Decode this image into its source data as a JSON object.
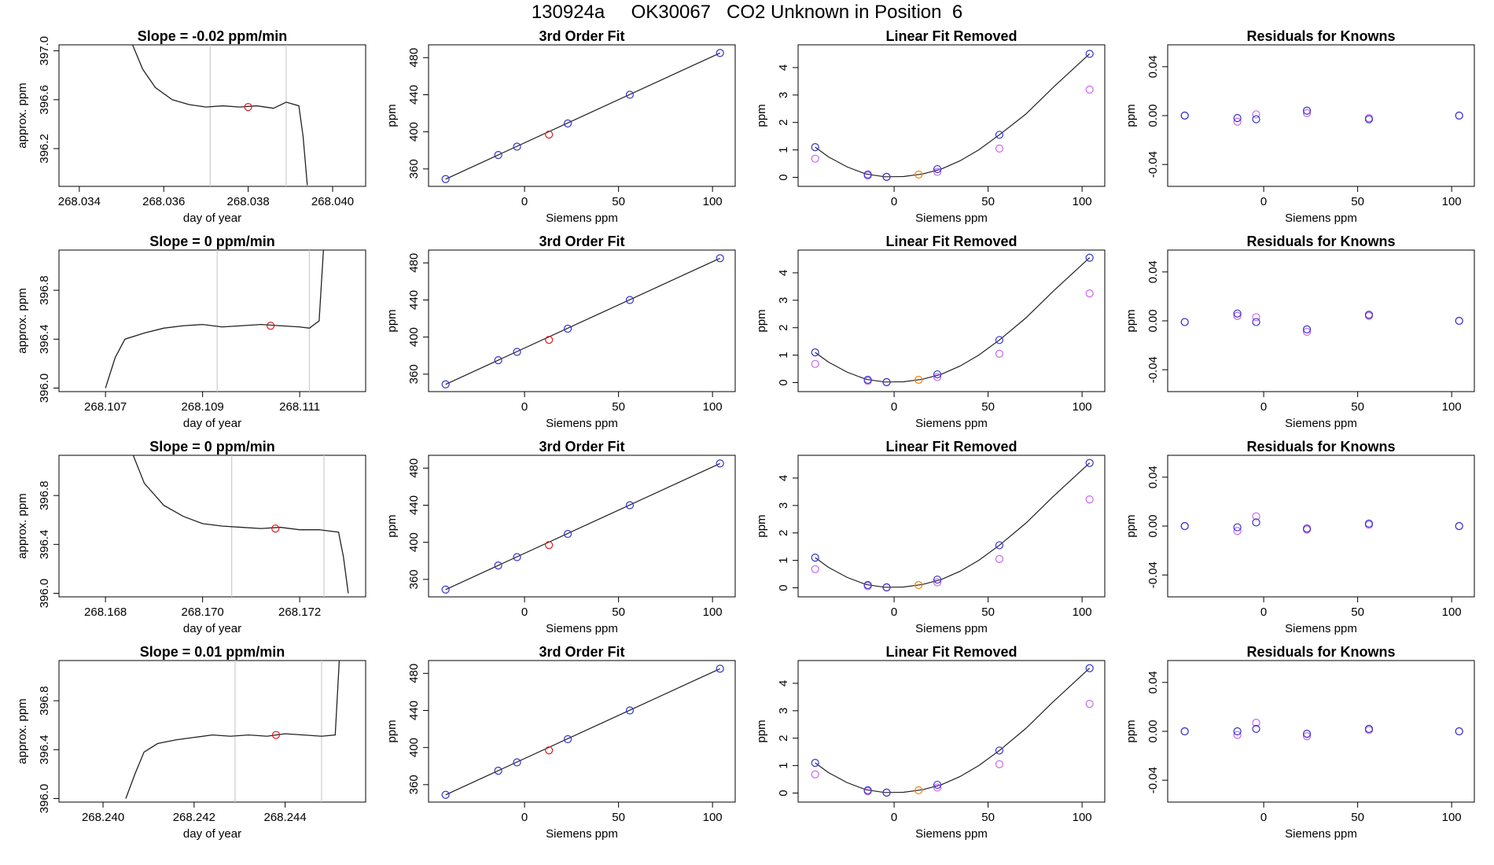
{
  "figure": {
    "title": "130924a     OK30067   CO2 Unknown in Position  6"
  },
  "colors": {
    "line": "#222222",
    "grid": "#cccccc",
    "unknown": "#e41a1c",
    "known": "#3333cc",
    "raw": "#cc66ee",
    "orange": "#ff7f00"
  },
  "labels": {
    "fit_title": "3rd Order Fit",
    "lin_title": "Linear Fit Removed",
    "res_title": "Residuals for Knowns",
    "x_siemens": "Siemens ppm",
    "x_doy": "day of year",
    "y_ppm": "ppm",
    "y_approx": "approx. ppm"
  },
  "chart_data": [
    {
      "type": "line",
      "title": "Slope =  -0.02  ppm/min",
      "xlabel": "day of year",
      "ylabel": "approx. ppm",
      "xlim": [
        268.0337,
        268.0406
      ],
      "ylim": [
        395.92,
        397.02
      ],
      "xticks": [
        "268.034",
        "268.036",
        "268.038",
        "268.040"
      ],
      "yticks": [
        "396.2",
        "396.6",
        "397.0"
      ],
      "window": [
        268.0371,
        268.0389
      ],
      "marker": [
        268.038,
        396.54
      ],
      "series": [
        {
          "x": [
            268.0352,
            268.0355,
            268.0358,
            268.0362,
            268.0366,
            268.037,
            268.0374,
            268.0378,
            268.0382,
            268.0386,
            268.0389,
            268.0392,
            268.0393,
            268.0394
          ],
          "y": [
            397.1,
            396.85,
            396.7,
            396.6,
            396.56,
            396.54,
            396.55,
            396.54,
            396.55,
            396.53,
            396.58,
            396.55,
            396.3,
            395.9
          ]
        }
      ]
    },
    {
      "type": "line",
      "title": "3rd Order Fit",
      "xlabel": "Siemens ppm",
      "ylabel": "ppm",
      "xlim": [
        -47,
        108
      ],
      "ylim": [
        345,
        490
      ],
      "xticks": [
        0,
        50,
        100
      ],
      "yticks": [
        360,
        400,
        440,
        480
      ],
      "fit_line": {
        "x": [
          -42,
          104
        ],
        "y": [
          349,
          485
        ]
      },
      "points_known": {
        "x": [
          -42,
          -14,
          -4,
          23,
          56,
          104
        ],
        "y": [
          349,
          375,
          384,
          409,
          440,
          485
        ]
      },
      "points_unknown": {
        "x": [
          13
        ],
        "y": [
          397
        ]
      }
    },
    {
      "type": "scatter",
      "title": "Linear Fit Removed",
      "xlabel": "Siemens ppm",
      "ylabel": "ppm",
      "xlim": [
        -47,
        108
      ],
      "ylim": [
        -0.2,
        4.7
      ],
      "xticks": [
        0,
        50,
        100
      ],
      "yticks": [
        0,
        1,
        2,
        3,
        4
      ],
      "curve": {
        "x": [
          -42,
          -35,
          -25,
          -15,
          -5,
          5,
          15,
          25,
          35,
          45,
          56,
          70,
          85,
          104
        ],
        "y": [
          1.1,
          0.75,
          0.38,
          0.12,
          0.02,
          0.03,
          0.12,
          0.3,
          0.6,
          1.0,
          1.55,
          2.3,
          3.3,
          4.5
        ]
      },
      "known": {
        "x": [
          -42,
          -14,
          -4,
          23,
          56,
          104
        ],
        "y": [
          1.1,
          0.1,
          0.02,
          0.3,
          1.55,
          4.5
        ]
      },
      "raw": {
        "x": [
          -42,
          -14,
          -4,
          23,
          56,
          104
        ],
        "y": [
          0.68,
          0.06,
          0.01,
          0.2,
          1.05,
          3.2
        ]
      },
      "unknown": {
        "x": [
          13
        ],
        "y": [
          0.1
        ]
      }
    },
    {
      "type": "scatter",
      "title": "Residuals for Knowns",
      "xlabel": "Siemens ppm",
      "ylabel": "ppm",
      "xlim": [
        -47,
        108
      ],
      "ylim": [
        -0.055,
        0.055
      ],
      "xticks": [
        0,
        50,
        100
      ],
      "yticks": [
        "-0.04",
        "0.00",
        "0.04"
      ],
      "known": {
        "x": [
          -42,
          -14,
          -4,
          23,
          56,
          104
        ],
        "y": [
          0.0,
          -0.002,
          -0.003,
          0.004,
          -0.003,
          0.0
        ]
      },
      "raw": {
        "x": [
          -42,
          -14,
          -4,
          23,
          56,
          104
        ],
        "y": [
          0.0,
          -0.005,
          0.001,
          0.002,
          -0.002,
          0.0
        ]
      }
    },
    {
      "type": "line",
      "title": "Slope =  0  ppm/min",
      "xlabel": "day of year",
      "ylabel": "approx. ppm",
      "xlim": [
        268.1062,
        268.1122
      ],
      "ylim": [
        396.0,
        397.1
      ],
      "xticks": [
        "268.107",
        "268.109",
        "268.111"
      ],
      "yticks": [
        "396.0",
        "396.4",
        "396.8"
      ],
      "window": [
        268.1093,
        268.1112
      ],
      "marker": [
        268.1104,
        396.51
      ],
      "series": [
        {
          "x": [
            268.107,
            268.1072,
            268.1074,
            268.1078,
            268.1082,
            268.1086,
            268.109,
            268.1094,
            268.1098,
            268.1102,
            268.1106,
            268.111,
            268.1112,
            268.1114,
            268.1115
          ],
          "y": [
            396.0,
            396.25,
            396.4,
            396.45,
            396.49,
            396.51,
            396.52,
            396.5,
            396.51,
            396.52,
            396.51,
            396.5,
            396.49,
            396.55,
            397.2
          ]
        }
      ]
    },
    {
      "type": "line",
      "title": "3rd Order Fit",
      "xlabel": "Siemens ppm",
      "ylabel": "ppm",
      "xlim": [
        -47,
        108
      ],
      "ylim": [
        345,
        490
      ],
      "xticks": [
        0,
        50,
        100
      ],
      "yticks": [
        360,
        400,
        440,
        480
      ],
      "fit_line": {
        "x": [
          -42,
          104
        ],
        "y": [
          349,
          485
        ]
      },
      "points_known": {
        "x": [
          -42,
          -14,
          -4,
          23,
          56,
          104
        ],
        "y": [
          349,
          375,
          384,
          409,
          440,
          485
        ]
      },
      "points_unknown": {
        "x": [
          13
        ],
        "y": [
          397
        ]
      }
    },
    {
      "type": "scatter",
      "title": "Linear Fit Removed",
      "xlabel": "Siemens ppm",
      "ylabel": "ppm",
      "xlim": [
        -47,
        108
      ],
      "ylim": [
        -0.2,
        4.7
      ],
      "xticks": [
        0,
        50,
        100
      ],
      "yticks": [
        0,
        1,
        2,
        3,
        4
      ],
      "curve": {
        "x": [
          -42,
          -35,
          -25,
          -15,
          -5,
          5,
          15,
          25,
          35,
          45,
          56,
          70,
          85,
          104
        ],
        "y": [
          1.1,
          0.75,
          0.38,
          0.12,
          0.02,
          0.03,
          0.12,
          0.3,
          0.6,
          1.0,
          1.55,
          2.35,
          3.35,
          4.55
        ]
      },
      "known": {
        "x": [
          -42,
          -14,
          -4,
          23,
          56,
          104
        ],
        "y": [
          1.1,
          0.1,
          0.02,
          0.3,
          1.55,
          4.55
        ]
      },
      "raw": {
        "x": [
          -42,
          -14,
          -4,
          23,
          56,
          104
        ],
        "y": [
          0.68,
          0.06,
          0.01,
          0.2,
          1.05,
          3.25
        ]
      },
      "unknown": {
        "x": [
          13
        ],
        "y": [
          0.1
        ]
      }
    },
    {
      "type": "scatter",
      "title": "Residuals for Knowns",
      "xlabel": "Siemens ppm",
      "ylabel": "ppm",
      "xlim": [
        -47,
        108
      ],
      "ylim": [
        -0.055,
        0.055
      ],
      "xticks": [
        0,
        50,
        100
      ],
      "yticks": [
        "-0.04",
        "0.00",
        "0.04"
      ],
      "known": {
        "x": [
          -42,
          -14,
          -4,
          23,
          56,
          104
        ],
        "y": [
          -0.001,
          0.006,
          -0.001,
          -0.007,
          0.005,
          0.0
        ]
      },
      "raw": {
        "x": [
          -42,
          -14,
          -4,
          23,
          56,
          104
        ],
        "y": [
          -0.001,
          0.004,
          0.003,
          -0.009,
          0.004,
          0.0
        ]
      }
    },
    {
      "type": "line",
      "title": "Slope =  0  ppm/min",
      "xlabel": "day of year",
      "ylabel": "approx. ppm",
      "xlim": [
        268.1672,
        268.1732
      ],
      "ylim": [
        396.0,
        397.1
      ],
      "xticks": [
        "268.168",
        "268.170",
        "268.172"
      ],
      "yticks": [
        "396.0",
        "396.4",
        "396.8"
      ],
      "window": [
        268.1706,
        268.1725
      ],
      "marker": [
        268.1715,
        396.53
      ],
      "series": [
        {
          "x": [
            268.1685,
            268.1688,
            268.1692,
            268.1696,
            268.17,
            268.1704,
            268.1708,
            268.1712,
            268.1716,
            268.172,
            268.1724,
            268.1728,
            268.1729,
            268.173
          ],
          "y": [
            397.2,
            396.9,
            396.72,
            396.63,
            396.57,
            396.55,
            396.54,
            396.53,
            396.54,
            396.52,
            396.52,
            396.5,
            396.3,
            396.0
          ]
        }
      ]
    },
    {
      "type": "line",
      "title": "3rd Order Fit",
      "xlabel": "Siemens ppm",
      "ylabel": "ppm",
      "xlim": [
        -47,
        108
      ],
      "ylim": [
        345,
        490
      ],
      "xticks": [
        0,
        50,
        100
      ],
      "yticks": [
        360,
        400,
        440,
        480
      ],
      "fit_line": {
        "x": [
          -42,
          104
        ],
        "y": [
          349,
          485
        ]
      },
      "points_known": {
        "x": [
          -42,
          -14,
          -4,
          23,
          56,
          104
        ],
        "y": [
          349,
          375,
          384,
          409,
          440,
          485
        ]
      },
      "points_unknown": {
        "x": [
          13
        ],
        "y": [
          397
        ]
      }
    },
    {
      "type": "scatter",
      "title": "Linear Fit Removed",
      "xlabel": "Siemens ppm",
      "ylabel": "ppm",
      "xlim": [
        -47,
        108
      ],
      "ylim": [
        -0.2,
        4.7
      ],
      "xticks": [
        0,
        50,
        100
      ],
      "yticks": [
        0,
        1,
        2,
        3,
        4
      ],
      "curve": {
        "x": [
          -42,
          -35,
          -25,
          -15,
          -5,
          5,
          15,
          25,
          35,
          45,
          56,
          70,
          85,
          104
        ],
        "y": [
          1.1,
          0.75,
          0.38,
          0.12,
          0.02,
          0.03,
          0.12,
          0.3,
          0.6,
          1.0,
          1.55,
          2.35,
          3.35,
          4.55
        ]
      },
      "known": {
        "x": [
          -42,
          -14,
          -4,
          23,
          56,
          104
        ],
        "y": [
          1.1,
          0.1,
          0.02,
          0.3,
          1.55,
          4.55
        ]
      },
      "raw": {
        "x": [
          -42,
          -14,
          -4,
          23,
          56,
          104
        ],
        "y": [
          0.68,
          0.06,
          0.01,
          0.2,
          1.05,
          3.22
        ]
      },
      "unknown": {
        "x": [
          13
        ],
        "y": [
          0.1
        ]
      }
    },
    {
      "type": "scatter",
      "title": "Residuals for Knowns",
      "xlabel": "Siemens ppm",
      "ylabel": "ppm",
      "xlim": [
        -47,
        108
      ],
      "ylim": [
        -0.055,
        0.055
      ],
      "xticks": [
        0,
        50,
        100
      ],
      "yticks": [
        "-0.04",
        "0.00",
        "0.04"
      ],
      "known": {
        "x": [
          -42,
          -14,
          -4,
          23,
          56,
          104
        ],
        "y": [
          0.0,
          -0.001,
          0.003,
          -0.002,
          0.002,
          0.0
        ]
      },
      "raw": {
        "x": [
          -42,
          -14,
          -4,
          23,
          56,
          104
        ],
        "y": [
          0.0,
          -0.004,
          0.008,
          -0.003,
          0.001,
          0.0
        ]
      }
    },
    {
      "type": "line",
      "title": "Slope =  0.01  ppm/min",
      "xlabel": "day of year",
      "ylabel": "approx. ppm",
      "xlim": [
        268.2392,
        268.2456
      ],
      "ylim": [
        396.0,
        397.1
      ],
      "xticks": [
        "268.240",
        "268.242",
        "268.244"
      ],
      "yticks": [
        "396.0",
        "396.4",
        "396.8"
      ],
      "window": [
        268.2429,
        268.2448
      ],
      "marker": [
        268.2438,
        396.52
      ],
      "series": [
        {
          "x": [
            268.2405,
            268.2407,
            268.2409,
            268.2412,
            268.2416,
            268.242,
            268.2424,
            268.2428,
            268.2432,
            268.2436,
            268.244,
            268.2444,
            268.2448,
            268.2451,
            268.2452
          ],
          "y": [
            396.0,
            396.2,
            396.38,
            396.45,
            396.48,
            396.5,
            396.52,
            396.51,
            396.52,
            396.51,
            396.53,
            396.52,
            396.51,
            396.52,
            397.2
          ]
        }
      ]
    },
    {
      "type": "line",
      "title": "3rd Order Fit",
      "xlabel": "Siemens ppm",
      "ylabel": "ppm",
      "xlim": [
        -47,
        108
      ],
      "ylim": [
        345,
        490
      ],
      "xticks": [
        0,
        50,
        100
      ],
      "yticks": [
        360,
        400,
        440,
        480
      ],
      "fit_line": {
        "x": [
          -42,
          104
        ],
        "y": [
          349,
          485
        ]
      },
      "points_known": {
        "x": [
          -42,
          -14,
          -4,
          23,
          56,
          104
        ],
        "y": [
          349,
          375,
          384,
          409,
          440,
          485
        ]
      },
      "points_unknown": {
        "x": [
          13
        ],
        "y": [
          397
        ]
      }
    },
    {
      "type": "scatter",
      "title": "Linear Fit Removed",
      "xlabel": "Siemens ppm",
      "ylabel": "ppm",
      "xlim": [
        -47,
        108
      ],
      "ylim": [
        -0.2,
        4.7
      ],
      "xticks": [
        0,
        50,
        100
      ],
      "yticks": [
        0,
        1,
        2,
        3,
        4
      ],
      "curve": {
        "x": [
          -42,
          -35,
          -25,
          -15,
          -5,
          5,
          15,
          25,
          35,
          45,
          56,
          70,
          85,
          104
        ],
        "y": [
          1.1,
          0.75,
          0.38,
          0.12,
          0.02,
          0.03,
          0.12,
          0.3,
          0.6,
          1.0,
          1.55,
          2.35,
          3.35,
          4.55
        ]
      },
      "known": {
        "x": [
          -42,
          -14,
          -4,
          23,
          56,
          104
        ],
        "y": [
          1.1,
          0.1,
          0.02,
          0.3,
          1.55,
          4.55
        ]
      },
      "raw": {
        "x": [
          -42,
          -14,
          -4,
          23,
          56,
          104
        ],
        "y": [
          0.68,
          0.06,
          0.01,
          0.2,
          1.05,
          3.25
        ]
      },
      "unknown": {
        "x": [
          13
        ],
        "y": [
          0.1
        ]
      }
    },
    {
      "type": "scatter",
      "title": "Residuals for Knowns",
      "xlabel": "Siemens ppm",
      "ylabel": "ppm",
      "xlim": [
        -47,
        108
      ],
      "ylim": [
        -0.055,
        0.055
      ],
      "xticks": [
        0,
        50,
        100
      ],
      "yticks": [
        "-0.04",
        "0.00",
        "0.04"
      ],
      "known": {
        "x": [
          -42,
          -14,
          -4,
          23,
          56,
          104
        ],
        "y": [
          0.0,
          0.0,
          0.002,
          -0.002,
          0.002,
          0.0
        ]
      },
      "raw": {
        "x": [
          -42,
          -14,
          -4,
          23,
          56,
          104
        ],
        "y": [
          0.0,
          -0.003,
          0.007,
          -0.004,
          0.001,
          0.0
        ]
      }
    }
  ]
}
